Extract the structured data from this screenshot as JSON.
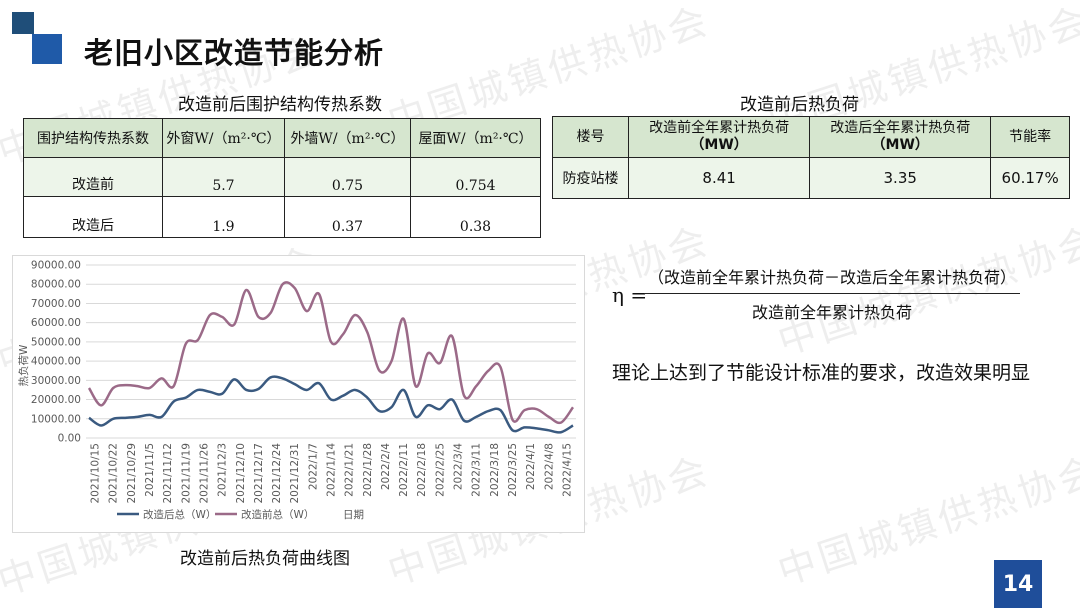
{
  "page": {
    "title": "老旧小区改造节能分析",
    "watermark": "中国城镇供热协会",
    "page_number": "14",
    "accent_color": "#1f4e9a",
    "table_header_color": "#d6e6cf"
  },
  "table1": {
    "caption": "改造前后围护结构传热系数",
    "headers": [
      "围护结构传热系数",
      "外窗W/（m²·℃）",
      "外墙W/（m²·℃）",
      "屋面W/（m²·℃）"
    ],
    "rows": [
      [
        "改造前",
        "5.7",
        "0.75",
        "0.754"
      ],
      [
        "改造后",
        "1.9",
        "0.37",
        "0.38"
      ]
    ]
  },
  "table2": {
    "caption": "改造前后热负荷",
    "headers": [
      "楼号",
      "改造前全年累计热负荷",
      "改造后全年累计热负荷",
      "节能率"
    ],
    "header_units": [
      "",
      "（MW）",
      "（MW）",
      ""
    ],
    "rows": [
      [
        "防疫站楼",
        "8.41",
        "3.35",
        "60.17%"
      ]
    ]
  },
  "formula": {
    "eta": "η =",
    "numerator": "（改造前全年累计热负荷－改造后全年累计热负荷）",
    "denominator": "改造前全年累计热负荷"
  },
  "conclusion": "理论上达到了节能设计标准的要求，改造效果明显",
  "chart_caption": "改造前后热负荷曲线图",
  "chart_data": {
    "type": "line",
    "ylabel": "热负荷W",
    "xlabel": "日期",
    "ylim": [
      0,
      90000
    ],
    "yticks": [
      "0.00",
      "10000.00",
      "20000.00",
      "30000.00",
      "40000.00",
      "50000.00",
      "60000.00",
      "70000.00",
      "80000.00",
      "90000.00"
    ],
    "x_ticks": [
      "2021/10/15",
      "2021/10/22",
      "2021/10/29",
      "2021/11/5",
      "2021/11/12",
      "2021/11/19",
      "2021/11/26",
      "2021/12/3",
      "2021/12/10",
      "2021/12/17",
      "2021/12/24",
      "2021/12/31",
      "2022/1/7",
      "2022/1/14",
      "2022/1/21",
      "2022/1/28",
      "2022/2/4",
      "2022/2/11",
      "2022/2/18",
      "2022/2/25",
      "2022/3/4",
      "2022/3/11",
      "2022/3/18",
      "2022/3/25",
      "2022/4/1",
      "2022/4/8",
      "2022/4/15"
    ],
    "grid": true,
    "legend_position": "bottom-left",
    "series": [
      {
        "name": "改造后总（W）",
        "color": "#3a5a80",
        "values": [
          10500,
          6500,
          10000,
          10500,
          11000,
          12000,
          11000,
          19000,
          21000,
          25000,
          24000,
          23000,
          30500,
          25000,
          25500,
          31500,
          31000,
          28000,
          25000,
          28500,
          20000,
          22000,
          25000,
          21000,
          14000,
          16000,
          25000,
          11000,
          17000,
          15000,
          20000,
          9000,
          11000,
          14000,
          14500,
          4000,
          5500,
          5000,
          4000,
          3000,
          6500
        ]
      },
      {
        "name": "改造前总（W）",
        "color": "#9b6a88",
        "values": [
          26000,
          17000,
          26000,
          27500,
          27000,
          26000,
          31000,
          27000,
          49000,
          51000,
          64000,
          63000,
          59000,
          77000,
          63000,
          65000,
          80000,
          78000,
          66000,
          75000,
          50000,
          54000,
          64000,
          55000,
          35000,
          40000,
          62000,
          27000,
          44000,
          39000,
          53000,
          22000,
          27000,
          35000,
          37000,
          9500,
          14500,
          15000,
          11000,
          8000,
          16000
        ]
      }
    ]
  }
}
